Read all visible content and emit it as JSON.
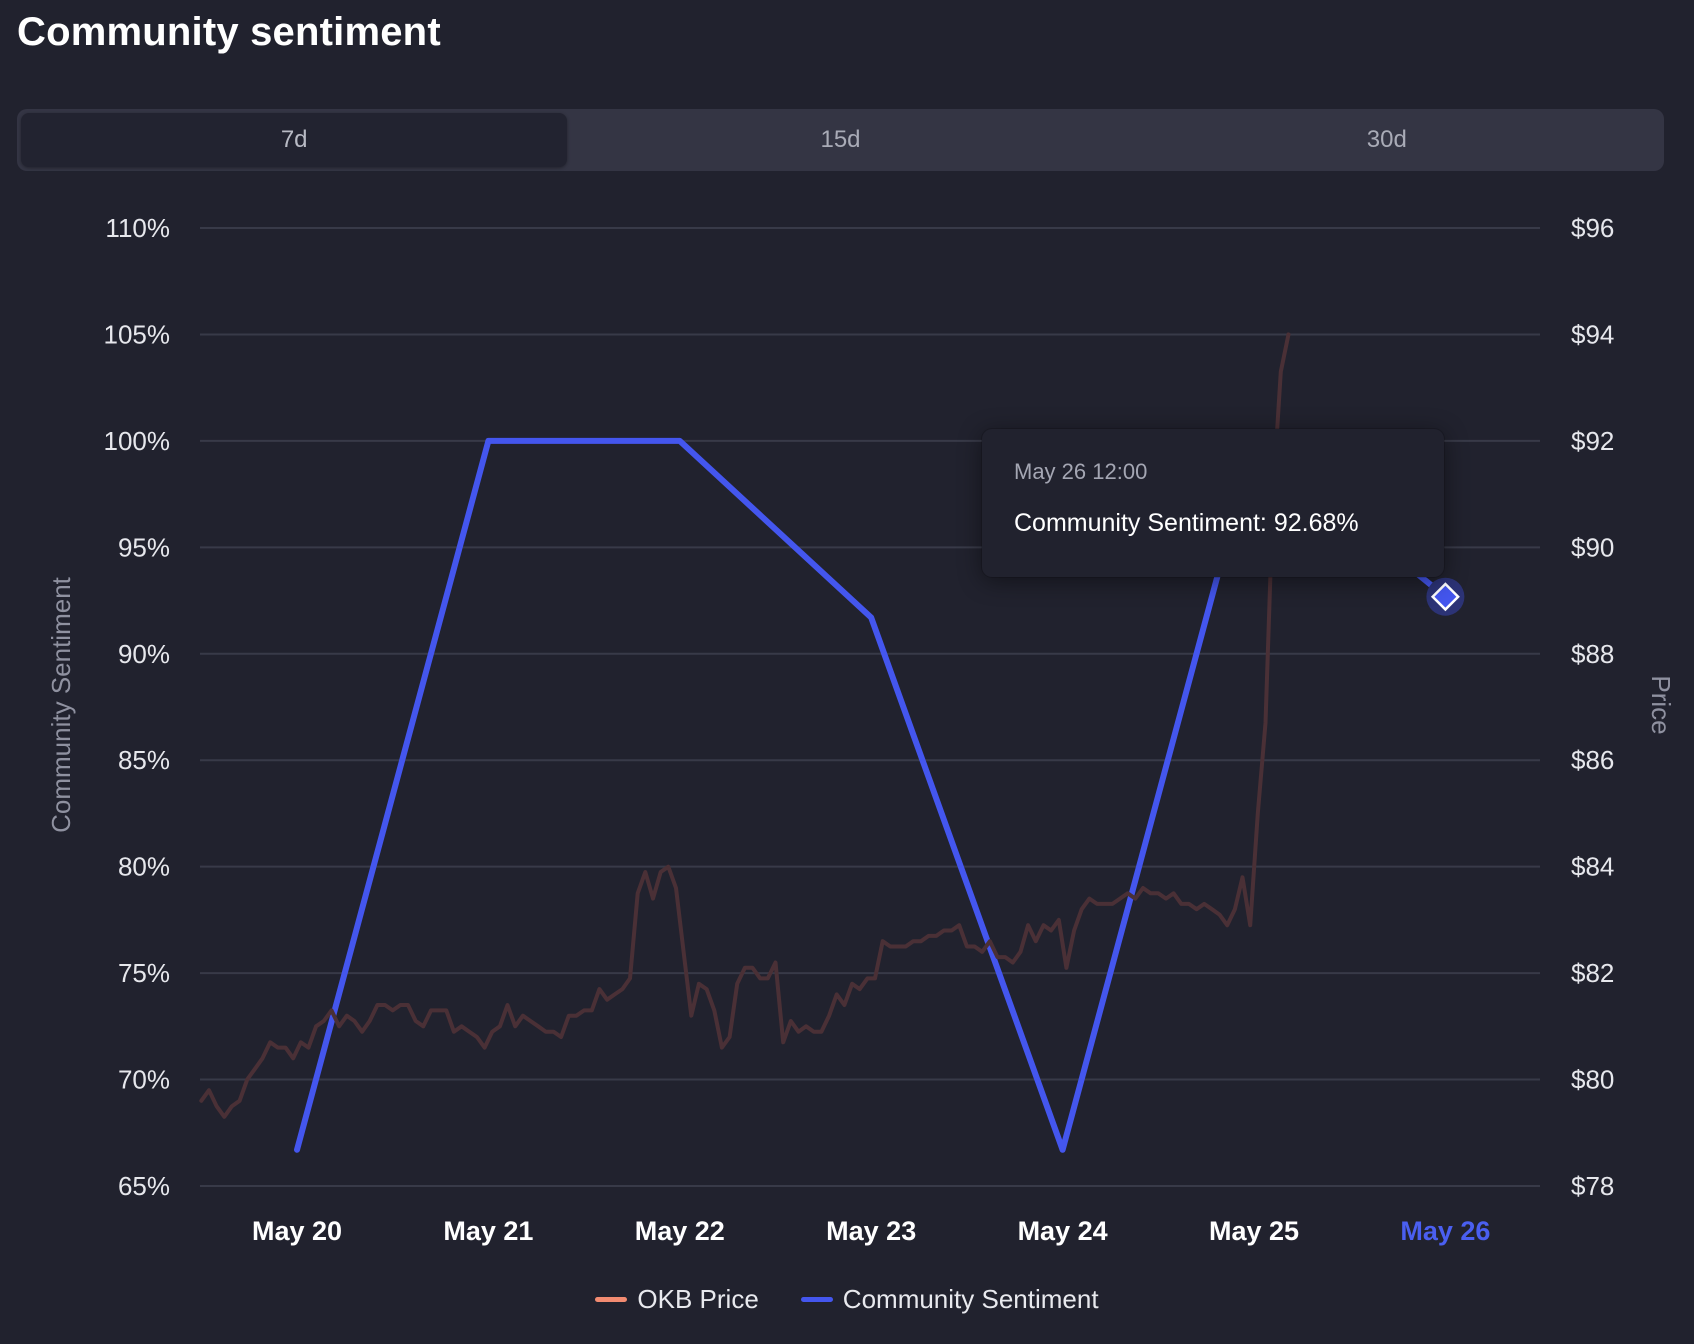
{
  "header": {
    "title": "Community sentiment"
  },
  "tabs": [
    {
      "label": "7d",
      "active": true
    },
    {
      "label": "15d",
      "active": false
    },
    {
      "label": "30d",
      "active": false
    }
  ],
  "tooltip": {
    "date": "May 26 12:00",
    "label": "Community Sentiment: 92.68%"
  },
  "legend": [
    {
      "label": "OKB Price",
      "color": "#f28b71"
    },
    {
      "label": "Community Sentiment",
      "color": "#4456ee"
    }
  ],
  "chart_data": {
    "type": "line",
    "x_tick_labels": [
      "May 20",
      "May 21",
      "May 22",
      "May 23",
      "May 24",
      "May 25",
      "May 26"
    ],
    "highlighted_x_tick": "May 26",
    "left_axis": {
      "label": "Community Sentiment",
      "ticks": [
        "110%",
        "105%",
        "100%",
        "95%",
        "90%",
        "85%",
        "80%",
        "75%",
        "70%",
        "65%"
      ],
      "range": [
        65,
        110
      ]
    },
    "right_axis": {
      "label": "Price",
      "ticks": [
        "$96",
        "$94",
        "$92",
        "$90",
        "$88",
        "$86",
        "$84",
        "$82",
        "$80",
        "$78"
      ],
      "range": [
        78,
        96
      ]
    },
    "grid": true,
    "legend_position": "bottom-center",
    "series": [
      {
        "name": "Community Sentiment",
        "axis": "left",
        "color": "#4456ee",
        "x": [
          0,
          1,
          2,
          3,
          4,
          5,
          6
        ],
        "values": [
          66.7,
          100,
          100,
          91.7,
          66.7,
          100,
          92.68
        ],
        "highlight_index": 6
      },
      {
        "name": "OKB Price",
        "axis": "right",
        "color": "#4a3036",
        "x_start": -0.5,
        "x_step": 0.04,
        "values": [
          79.6,
          79.8,
          79.5,
          79.3,
          79.5,
          79.6,
          80.0,
          80.2,
          80.4,
          80.7,
          80.6,
          80.6,
          80.4,
          80.7,
          80.6,
          81.0,
          81.1,
          81.3,
          81.0,
          81.2,
          81.1,
          80.9,
          81.1,
          81.4,
          81.4,
          81.3,
          81.4,
          81.4,
          81.1,
          81.0,
          81.3,
          81.3,
          81.3,
          80.9,
          81.0,
          80.9,
          80.8,
          80.6,
          80.9,
          81.0,
          81.4,
          81.0,
          81.2,
          81.1,
          81.0,
          80.9,
          80.9,
          80.8,
          81.2,
          81.2,
          81.3,
          81.3,
          81.7,
          81.5,
          81.6,
          81.7,
          81.9,
          83.5,
          83.9,
          83.4,
          83.9,
          84.0,
          83.6,
          82.4,
          81.2,
          81.8,
          81.7,
          81.3,
          80.6,
          80.8,
          81.8,
          82.1,
          82.1,
          81.9,
          81.9,
          82.2,
          80.7,
          81.1,
          80.9,
          81.0,
          80.9,
          80.9,
          81.2,
          81.6,
          81.4,
          81.8,
          81.7,
          81.9,
          81.9,
          82.6,
          82.5,
          82.5,
          82.5,
          82.6,
          82.6,
          82.7,
          82.7,
          82.8,
          82.8,
          82.9,
          82.5,
          82.5,
          82.4,
          82.6,
          82.3,
          82.3,
          82.2,
          82.4,
          82.9,
          82.6,
          82.9,
          82.8,
          83.0,
          82.1,
          82.8,
          83.2,
          83.4,
          83.3,
          83.3,
          83.3,
          83.4,
          83.5,
          83.4,
          83.6,
          83.5,
          83.5,
          83.4,
          83.5,
          83.3,
          83.3,
          83.2,
          83.3,
          83.2,
          83.1,
          82.9,
          83.2,
          83.8,
          82.9,
          85.0,
          86.7,
          91.0,
          93.3,
          94.0
        ]
      }
    ]
  }
}
